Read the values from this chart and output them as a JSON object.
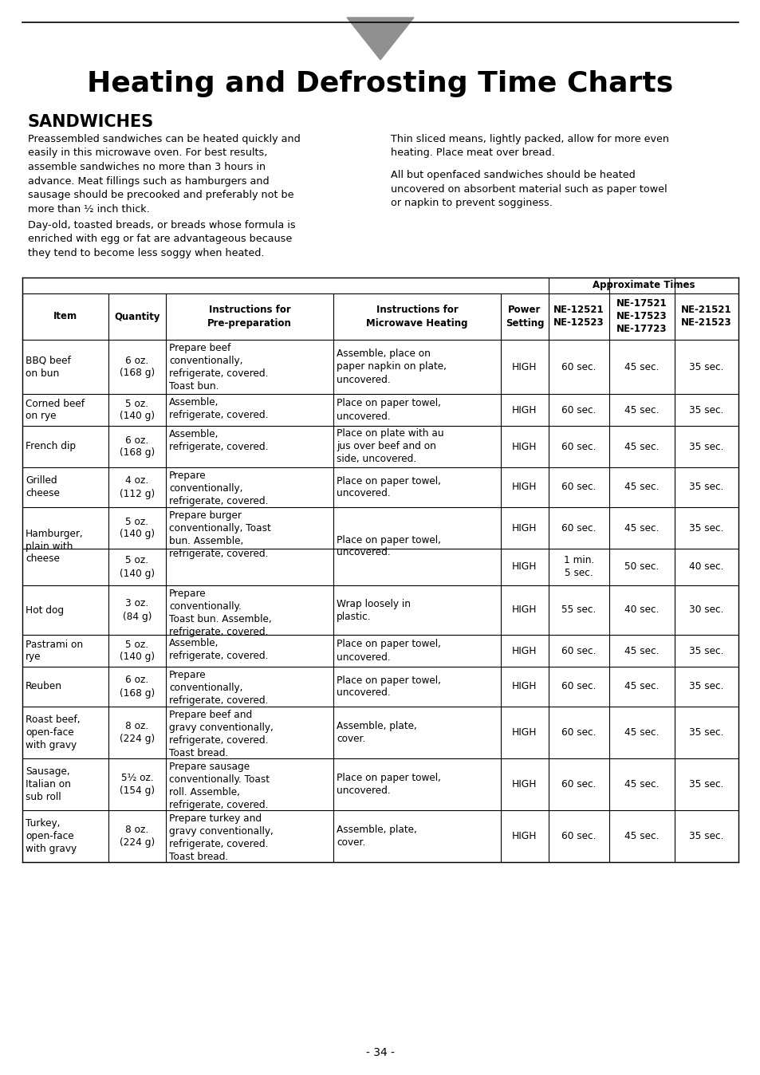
{
  "title": "Heating and Defrosting Time Charts",
  "section": "SANDWICHES",
  "para1_left": "Preassembled sandwiches can be heated quickly and\neasily in this microwave oven. For best results,\nassemble sandwiches no more than 3 hours in\nadvance. Meat fillings such as hamburgers and\nsausage should be precooked and preferably not be\nmore than ½ inch thick.",
  "para2_left": "Day-old, toasted breads, or breads whose formula is\nenriched with egg or fat are advantageous because\nthey tend to become less soggy when heated.",
  "para1_right": "Thin sliced means, lightly packed, allow for more even\nheating. Place meat over bread.",
  "para2_right": "All but openfaced sandwiches should be heated\nuncovered on absorbent material such as paper towel\nor napkin to prevent sogginess.",
  "approx_times_header": "Approximate Times",
  "col_headers": [
    "Item",
    "Quantity",
    "Instructions for\nPre-preparation",
    "Instructions for\nMicrowave Heating",
    "Power\nSetting",
    "NE-12521\nNE-12523",
    "NE-17521\nNE-17523\nNE-17723",
    "NE-21521\nNE-21523"
  ],
  "rows": [
    {
      "item": "BBQ beef\non bun",
      "qty": "6 oz.\n(168 g)",
      "prep": "Prepare beef\nconventionally,\nrefrigerate, covered.\nToast bun.",
      "micro": "Assemble, place on\npaper napkin on plate,\nuncovered.",
      "power": "HIGH",
      "t1": "60 sec.",
      "t2": "45 sec.",
      "t3": "35 sec.",
      "subrow": null
    },
    {
      "item": "Corned beef\non rye",
      "qty": "5 oz.\n(140 g)",
      "prep": "Assemble,\nrefrigerate, covered.",
      "micro": "Place on paper towel,\nuncovered.",
      "power": "HIGH",
      "t1": "60 sec.",
      "t2": "45 sec.",
      "t3": "35 sec.",
      "subrow": null
    },
    {
      "item": "French dip",
      "qty": "6 oz.\n(168 g)",
      "prep": "Assemble,\nrefrigerate, covered.",
      "micro": "Place on plate with au\njus over beef and on\nside, uncovered.",
      "power": "HIGH",
      "t1": "60 sec.",
      "t2": "45 sec.",
      "t3": "35 sec.",
      "subrow": null
    },
    {
      "item": "Grilled\ncheese",
      "qty": "4 oz.\n(112 g)",
      "prep": "Prepare\nconventionally,\nrefrigerate, covered.",
      "micro": "Place on paper towel,\nuncovered.",
      "power": "HIGH",
      "t1": "60 sec.",
      "t2": "45 sec.",
      "t3": "35 sec.",
      "subrow": null
    },
    {
      "item": "Hamburger,\nplain with\ncheese",
      "qty": "5 oz.\n(140 g)",
      "prep": "Prepare burger\nconventionally, Toast\nbun. Assemble,\nrefrigerate, covered.",
      "micro": "Place on paper towel,\nuncovered.",
      "power": "HIGH",
      "t1": "60 sec.",
      "t2": "45 sec.",
      "t3": "35 sec.",
      "subrow": {
        "qty": "5 oz.\n(140 g)",
        "power": "HIGH",
        "t1": "1 min.\n5 sec.",
        "t2": "50 sec.",
        "t3": "40 sec."
      }
    },
    {
      "item": "Hot dog",
      "qty": "3 oz.\n(84 g)",
      "prep": "Prepare\nconventionally.\nToast bun. Assemble,\nrefrigerate, covered.",
      "micro": "Wrap loosely in\nplastic.",
      "power": "HIGH",
      "t1": "55 sec.",
      "t2": "40 sec.",
      "t3": "30 sec.",
      "subrow": null
    },
    {
      "item": "Pastrami on\nrye",
      "qty": "5 oz.\n(140 g)",
      "prep": "Assemble,\nrefrigerate, covered.",
      "micro": "Place on paper towel,\nuncovered.",
      "power": "HIGH",
      "t1": "60 sec.",
      "t2": "45 sec.",
      "t3": "35 sec.",
      "subrow": null
    },
    {
      "item": "Reuben",
      "qty": "6 oz.\n(168 g)",
      "prep": "Prepare\nconventionally,\nrefrigerate, covered.",
      "micro": "Place on paper towel,\nuncovered.",
      "power": "HIGH",
      "t1": "60 sec.",
      "t2": "45 sec.",
      "t3": "35 sec.",
      "subrow": null
    },
    {
      "item": "Roast beef,\nopen-face\nwith gravy",
      "qty": "8 oz.\n(224 g)",
      "prep": "Prepare beef and\ngravy conventionally,\nrefrigerate, covered.\nToast bread.",
      "micro": "Assemble, plate,\ncover.",
      "power": "HIGH",
      "t1": "60 sec.",
      "t2": "45 sec.",
      "t3": "35 sec.",
      "subrow": null
    },
    {
      "item": "Sausage,\nItalian on\nsub roll",
      "qty": "5½ oz.\n(154 g)",
      "prep": "Prepare sausage\nconventionally. Toast\nroll. Assemble,\nrefrigerate, covered.",
      "micro": "Place on paper towel,\nuncovered.",
      "power": "HIGH",
      "t1": "60 sec.",
      "t2": "45 sec.",
      "t3": "35 sec.",
      "subrow": null
    },
    {
      "item": "Turkey,\nopen-face\nwith gravy",
      "qty": "8 oz.\n(224 g)",
      "prep": "Prepare turkey and\ngravy conventionally,\nrefrigerate, covered.\nToast bread.",
      "micro": "Assemble, plate,\ncover.",
      "power": "HIGH",
      "t1": "60 sec.",
      "t2": "45 sec.",
      "t3": "35 sec.",
      "subrow": null
    }
  ],
  "page_number": "- 34 -",
  "bg_color": "#ffffff",
  "text_color": "#000000",
  "border_color": "#000000"
}
